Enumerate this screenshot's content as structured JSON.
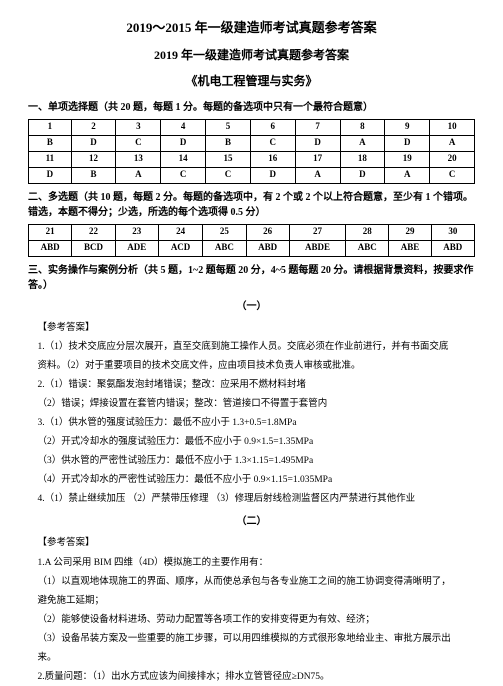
{
  "titles": {
    "main": "2019～2015 年一级建造师考试真题参考答案",
    "sub": "2019 年一级建造师考试真题参考答案",
    "subject": "《机电工程管理与实务》"
  },
  "section1": {
    "header": "一、单项选择题（共 20 题，每题 1 分。每题的备选项中只有一个最符合题意）",
    "headers_row1": [
      "1",
      "2",
      "3",
      "4",
      "5",
      "6",
      "7",
      "8",
      "9",
      "10"
    ],
    "answers_row1": [
      "B",
      "D",
      "C",
      "D",
      "B",
      "C",
      "D",
      "A",
      "D",
      "A"
    ],
    "headers_row2": [
      "11",
      "12",
      "13",
      "14",
      "15",
      "16",
      "17",
      "18",
      "19",
      "20"
    ],
    "answers_row2": [
      "D",
      "B",
      "A",
      "C",
      "C",
      "D",
      "A",
      "D",
      "A",
      "C"
    ]
  },
  "section2": {
    "header": "二、多选题（共 10 题，每题 2 分。每题的备选项中，有 2 个或 2 个以上符合题意，至少有 1 个错项。错选，本题不得分；少选，所选的每个选项得 0.5 分）",
    "headers": [
      "21",
      "22",
      "23",
      "24",
      "25",
      "26",
      "27",
      "28",
      "29",
      "30"
    ],
    "answers": [
      "ABD",
      "BCD",
      "ADE",
      "ACD",
      "ABC",
      "ABD",
      "ABDE",
      "ABC",
      "ABE",
      "ABD"
    ]
  },
  "section3": {
    "header": "三、实务操作与案例分析（共 5 题，1~2 题每题 20 分，4~5 题每题 20 分。请根据背景资料，按要求作答。）",
    "part1_label": "（一）",
    "part2_label": "（二）",
    "ref_label": "【参考答案】",
    "p1_l1": "1.（1）技术交底应分层次展开，直至交底到施工操作人员。交底必须在作业前进行，并有书面交底",
    "p1_l2": "资料。（2）对于重要项目的技术交底文件，应由项目技术负责人审核或批准。",
    "p1_l3": "2.（1）错误：聚氨酯发泡封堵错误；整改：应采用不燃材料封堵",
    "p1_l4": "（2）错误；焊接设置在套管内错误；整改：管道接口不得置于套管内",
    "p1_l5": "3.（1）供水管的强度试验压力：最低不应小于 1.3+0.5=1.8MPa",
    "p1_l6": "（2）开式冷却水的强度试验压力：最低不应小于 0.9×1.5=1.35MPa",
    "p1_l7": "（3）供水管的严密性试验压力：最低不应小于 1.3×1.15=1.495MPa",
    "p1_l8": "（4）开式冷却水的严密性试验压力：最低不应小于 0.9×1.15=1.035MPa",
    "p1_l9": "4.（1）禁止继续加压 （2）严禁带压修理 （3）修理后射线检测监督区内严禁进行其他作业",
    "p2_l1": "1.A 公司采用 BIM 四维（4D）模拟施工的主要作用有：",
    "p2_l2": "（1）以直观地体现施工的界面、顺序，从而使总承包与各专业施工之间的施工协调变得清晰明了，",
    "p2_l3": "避免施工延期；",
    "p2_l4": "（2）能够使设备材料进场、劳动力配置等各项工作的安排变得更为有效、经济；",
    "p2_l5": "（3）设备吊装方案及一些重要的施工步骤，可以用四维模拟的方式很形象地给业主、审批方展示出",
    "p2_l6": "来。",
    "p2_l7": "2.质量问题：（1）出水方式应该为间接排水；排水立管管径应≥DN75。"
  },
  "colors": {
    "text": "#000000",
    "background": "#ffffff",
    "border": "#000000"
  },
  "fonts": {
    "family": "SimSun",
    "title_size": 13,
    "body_size": 10,
    "table_size": 9
  }
}
